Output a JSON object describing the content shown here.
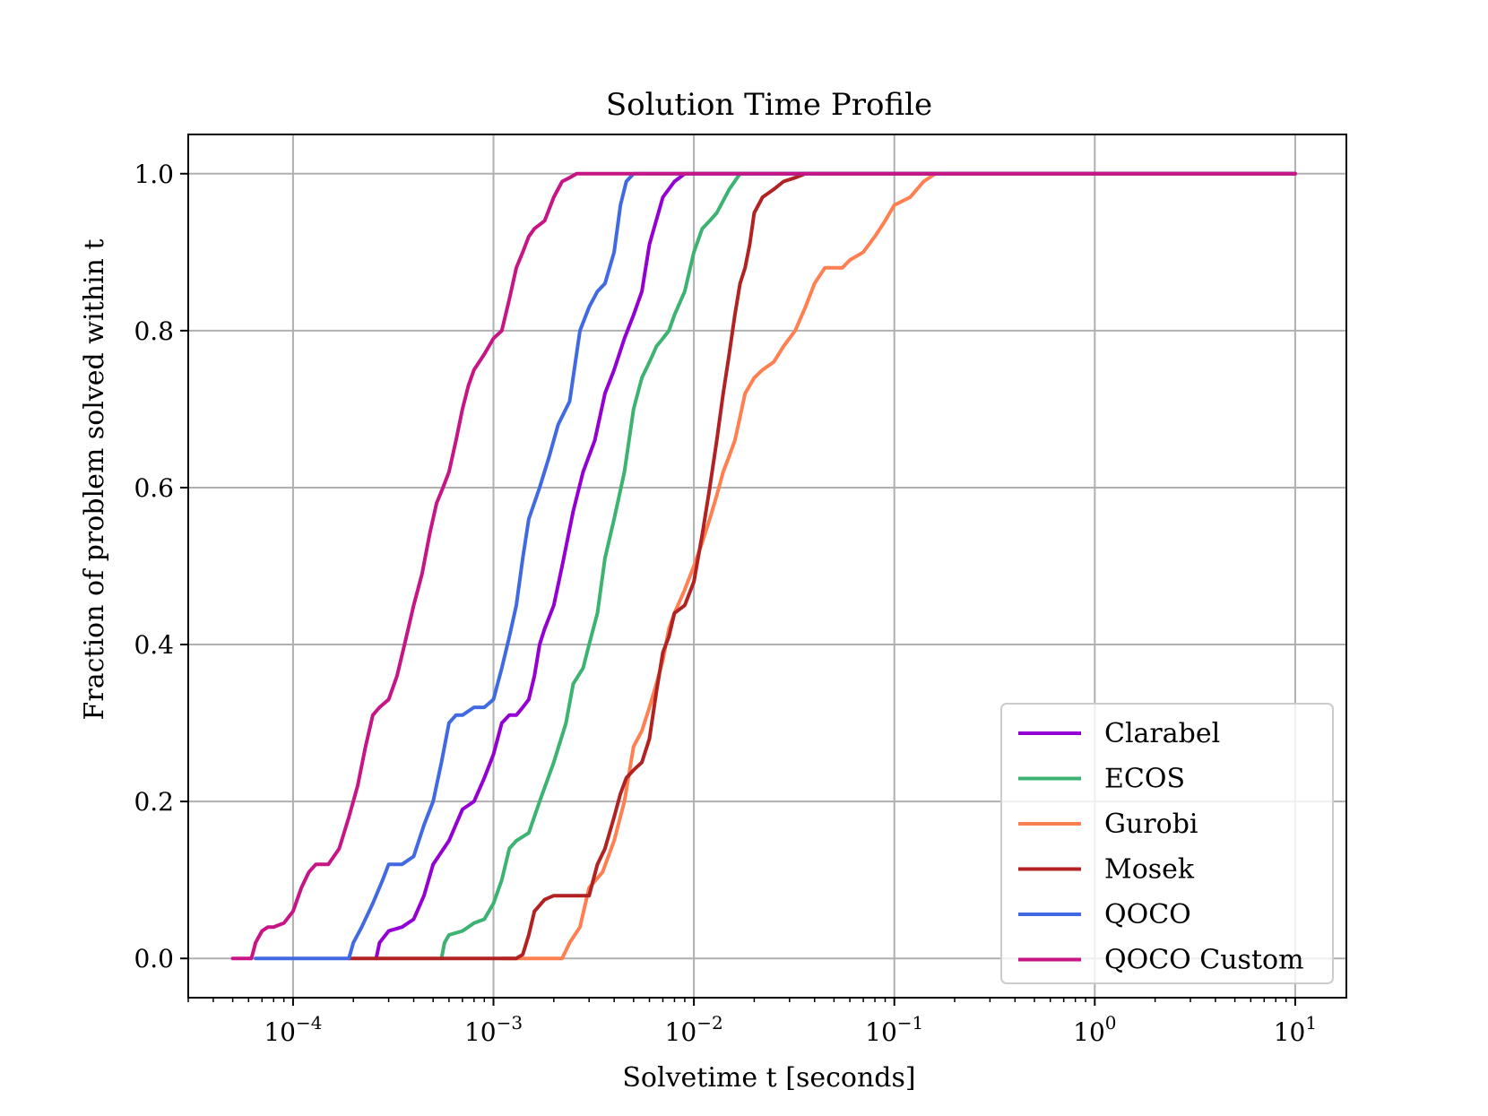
{
  "chart_data": {
    "type": "line",
    "title": "Solution Time Profile",
    "xlabel": "Solvetime t [seconds]",
    "ylabel": "Fraction of problem solved within t",
    "x_scale": "log",
    "xlim": [
      3e-05,
      18
    ],
    "ylim": [
      -0.05,
      1.05
    ],
    "x_ticks": [
      {
        "base": "10",
        "exp": "−4",
        "value": 0.0001
      },
      {
        "base": "10",
        "exp": "−3",
        "value": 0.001
      },
      {
        "base": "10",
        "exp": "−2",
        "value": 0.01
      },
      {
        "base": "10",
        "exp": "−1",
        "value": 0.1
      },
      {
        "base": "10",
        "exp": "0",
        "value": 1
      },
      {
        "base": "10",
        "exp": "1",
        "value": 10
      }
    ],
    "y_ticks": [
      {
        "label": "0.0",
        "value": 0.0
      },
      {
        "label": "0.2",
        "value": 0.2
      },
      {
        "label": "0.4",
        "value": 0.4
      },
      {
        "label": "0.6",
        "value": 0.6
      },
      {
        "label": "0.8",
        "value": 0.8
      },
      {
        "label": "1.0",
        "value": 1.0
      }
    ],
    "grid": true,
    "legend_position": "lower-right",
    "series": [
      {
        "name": "Clarabel",
        "color": "#9400d3",
        "x": [
          0.00026,
          0.00027,
          0.0003,
          0.00035,
          0.0004,
          0.00045,
          0.0005,
          0.0006,
          0.0007,
          0.0008,
          0.0009,
          0.001,
          0.0011,
          0.0012,
          0.0013,
          0.0014,
          0.0015,
          0.0016,
          0.0017,
          0.0018,
          0.002,
          0.0022,
          0.0025,
          0.0028,
          0.0032,
          0.0036,
          0.004,
          0.0045,
          0.005,
          0.0055,
          0.006,
          0.007,
          0.008,
          0.009,
          0.01,
          10
        ],
        "y": [
          0.0,
          0.02,
          0.035,
          0.04,
          0.05,
          0.08,
          0.12,
          0.15,
          0.19,
          0.2,
          0.23,
          0.26,
          0.3,
          0.31,
          0.31,
          0.32,
          0.33,
          0.36,
          0.4,
          0.42,
          0.45,
          0.5,
          0.57,
          0.62,
          0.66,
          0.72,
          0.75,
          0.79,
          0.82,
          0.85,
          0.91,
          0.97,
          0.99,
          1.0,
          1.0,
          1.0
        ]
      },
      {
        "name": "ECOS",
        "color": "#3cb371",
        "x": [
          0.00055,
          0.00057,
          0.0006,
          0.0007,
          0.0008,
          0.0009,
          0.001,
          0.0011,
          0.0012,
          0.0013,
          0.0015,
          0.0017,
          0.002,
          0.0023,
          0.0025,
          0.0028,
          0.003,
          0.0033,
          0.0036,
          0.004,
          0.0045,
          0.005,
          0.0055,
          0.006,
          0.0065,
          0.007,
          0.0075,
          0.008,
          0.009,
          0.01,
          0.011,
          0.012,
          0.013,
          0.015,
          0.017,
          0.02,
          10
        ],
        "y": [
          0.0,
          0.02,
          0.03,
          0.035,
          0.045,
          0.05,
          0.07,
          0.1,
          0.14,
          0.15,
          0.16,
          0.2,
          0.25,
          0.3,
          0.35,
          0.37,
          0.4,
          0.44,
          0.51,
          0.56,
          0.62,
          0.7,
          0.74,
          0.76,
          0.78,
          0.79,
          0.8,
          0.82,
          0.85,
          0.9,
          0.93,
          0.94,
          0.95,
          0.98,
          1.0,
          1.0,
          1.0
        ]
      },
      {
        "name": "Gurobi",
        "color": "#ff7f50",
        "x": [
          0.0011,
          0.0022,
          0.0024,
          0.0027,
          0.003,
          0.0035,
          0.004,
          0.0045,
          0.005,
          0.0055,
          0.006,
          0.0065,
          0.007,
          0.0075,
          0.008,
          0.009,
          0.01,
          0.011,
          0.012,
          0.013,
          0.014,
          0.015,
          0.016,
          0.017,
          0.018,
          0.019,
          0.02,
          0.022,
          0.025,
          0.028,
          0.032,
          0.036,
          0.04,
          0.045,
          0.05,
          0.055,
          0.06,
          0.07,
          0.08,
          0.09,
          0.1,
          0.12,
          0.14,
          0.16,
          10
        ],
        "y": [
          0.0,
          0.0,
          0.02,
          0.04,
          0.09,
          0.11,
          0.15,
          0.2,
          0.27,
          0.29,
          0.32,
          0.35,
          0.38,
          0.42,
          0.44,
          0.47,
          0.5,
          0.53,
          0.56,
          0.59,
          0.62,
          0.64,
          0.66,
          0.69,
          0.72,
          0.73,
          0.74,
          0.75,
          0.76,
          0.78,
          0.8,
          0.83,
          0.86,
          0.88,
          0.88,
          0.88,
          0.89,
          0.9,
          0.92,
          0.94,
          0.96,
          0.97,
          0.99,
          1.0,
          1.0
        ]
      },
      {
        "name": "Mosek",
        "color": "#b22222",
        "x": [
          0.00019,
          0.0013,
          0.0014,
          0.0015,
          0.0016,
          0.0018,
          0.002,
          0.0023,
          0.0026,
          0.003,
          0.0033,
          0.0036,
          0.004,
          0.0043,
          0.0046,
          0.005,
          0.0055,
          0.006,
          0.0065,
          0.007,
          0.0075,
          0.008,
          0.009,
          0.01,
          0.011,
          0.012,
          0.013,
          0.014,
          0.015,
          0.016,
          0.017,
          0.018,
          0.019,
          0.02,
          0.022,
          0.025,
          0.028,
          0.032,
          0.036,
          0.04,
          10
        ],
        "y": [
          0.0,
          0.0,
          0.005,
          0.03,
          0.06,
          0.075,
          0.08,
          0.08,
          0.08,
          0.08,
          0.12,
          0.14,
          0.18,
          0.21,
          0.23,
          0.24,
          0.25,
          0.28,
          0.34,
          0.39,
          0.41,
          0.44,
          0.45,
          0.48,
          0.54,
          0.6,
          0.66,
          0.72,
          0.77,
          0.82,
          0.86,
          0.88,
          0.91,
          0.95,
          0.97,
          0.98,
          0.99,
          0.995,
          1.0,
          1.0,
          1.0
        ]
      },
      {
        "name": "QOCO",
        "color": "#4169e1",
        "x": [
          6.5e-05,
          0.00019,
          0.0002,
          0.00022,
          0.00025,
          0.00028,
          0.0003,
          0.00035,
          0.0004,
          0.00045,
          0.0005,
          0.00055,
          0.0006,
          0.00065,
          0.0007,
          0.0008,
          0.0009,
          0.001,
          0.0011,
          0.0012,
          0.0013,
          0.0014,
          0.0015,
          0.0017,
          0.0019,
          0.0021,
          0.0024,
          0.0027,
          0.003,
          0.0033,
          0.0036,
          0.004,
          0.0043,
          0.0046,
          0.005,
          10
        ],
        "y": [
          0.0,
          0.0,
          0.02,
          0.04,
          0.07,
          0.1,
          0.12,
          0.12,
          0.13,
          0.17,
          0.2,
          0.25,
          0.3,
          0.31,
          0.31,
          0.32,
          0.32,
          0.33,
          0.37,
          0.41,
          0.45,
          0.51,
          0.56,
          0.6,
          0.64,
          0.68,
          0.71,
          0.8,
          0.83,
          0.85,
          0.86,
          0.9,
          0.96,
          0.99,
          1.0,
          1.0
        ]
      },
      {
        "name": "QOCO Custom",
        "color": "#c71585",
        "x": [
          5e-05,
          6.2e-05,
          6.5e-05,
          7e-05,
          7.5e-05,
          8e-05,
          9e-05,
          0.0001,
          0.00011,
          0.00012,
          0.00013,
          0.00015,
          0.00017,
          0.00019,
          0.00021,
          0.00023,
          0.00025,
          0.00027,
          0.0003,
          0.00033,
          0.00036,
          0.0004,
          0.00044,
          0.00048,
          0.00052,
          0.00056,
          0.0006,
          0.00065,
          0.0007,
          0.00075,
          0.0008,
          0.0009,
          0.001,
          0.0011,
          0.0012,
          0.0013,
          0.0014,
          0.0015,
          0.0016,
          0.0018,
          0.002,
          0.0022,
          0.0024,
          0.0026,
          0.0028,
          0.003,
          10
        ],
        "y": [
          0.0,
          0.0,
          0.02,
          0.035,
          0.04,
          0.04,
          0.045,
          0.06,
          0.09,
          0.11,
          0.12,
          0.12,
          0.14,
          0.18,
          0.22,
          0.27,
          0.31,
          0.32,
          0.33,
          0.36,
          0.4,
          0.45,
          0.49,
          0.54,
          0.58,
          0.6,
          0.62,
          0.66,
          0.7,
          0.73,
          0.75,
          0.77,
          0.79,
          0.8,
          0.84,
          0.88,
          0.9,
          0.92,
          0.93,
          0.94,
          0.97,
          0.99,
          0.995,
          1.0,
          1.0,
          1.0,
          1.0
        ]
      }
    ]
  }
}
